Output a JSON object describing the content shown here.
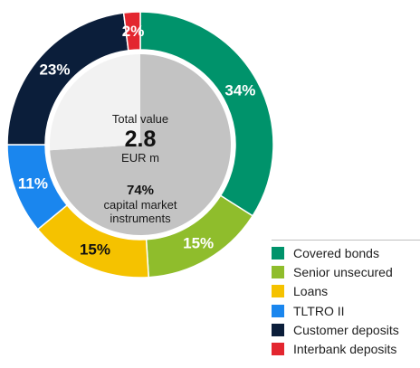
{
  "chart_data": {
    "type": "pie",
    "donut": true,
    "title": "",
    "categories": [
      "Covered bonds",
      "Senior unsecured",
      "Loans",
      "TLTRO II",
      "Customer deposits",
      "Interbank deposits"
    ],
    "values": [
      34,
      15,
      15,
      11,
      23,
      2
    ],
    "labels": [
      "34%",
      "15%",
      "15%",
      "11%",
      "23%",
      "2%"
    ],
    "colors": [
      "#00936b",
      "#8fbd2c",
      "#f5c200",
      "#1a86ee",
      "#0b1e3a",
      "#e3262f"
    ],
    "label_colors": [
      "#ffffff",
      "#ffffff",
      "#111111",
      "#ffffff",
      "#ffffff",
      "#ffffff"
    ],
    "inner_pie": {
      "values": [
        74,
        26
      ],
      "colors": [
        "#c3c3c3",
        "#f2f2f2"
      ],
      "text": {
        "total_label": "Total value",
        "total_value": "2.8",
        "total_unit": "EUR m",
        "share_value": "74%",
        "share_line1": "capital market",
        "share_line2": "instruments"
      }
    },
    "legend_position": "bottom-right"
  }
}
